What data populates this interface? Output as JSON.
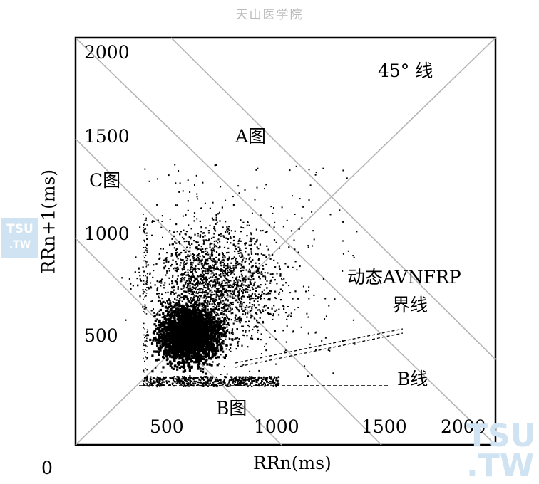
{
  "watermark_top": "天山医学院",
  "logo": {
    "line1": "TSU",
    "line2": ".TW"
  },
  "chart_data": {
    "type": "scatter",
    "title": "",
    "xlabel": "RRn(ms)",
    "ylabel": "RRn+1(ms)",
    "xlim": [
      0,
      2000
    ],
    "ylim": [
      0,
      2000
    ],
    "origin_label": "0",
    "x_ticks": [
      "500",
      "1000",
      "1500",
      "2000"
    ],
    "y_ticks": [
      "500",
      "1000",
      "1500",
      "2000"
    ],
    "annotations": {
      "line_45": "45° 线",
      "region_a": "A图",
      "region_b": "B图",
      "region_c": "C图",
      "avnfrp_1": "动态AVNFRP",
      "avnfrp_2": "界线",
      "line_b": "B线"
    },
    "grid": false,
    "description_points": "dense cluster of RR interval pairs centered near (500,500), spreading toward (1000,1000)"
  }
}
